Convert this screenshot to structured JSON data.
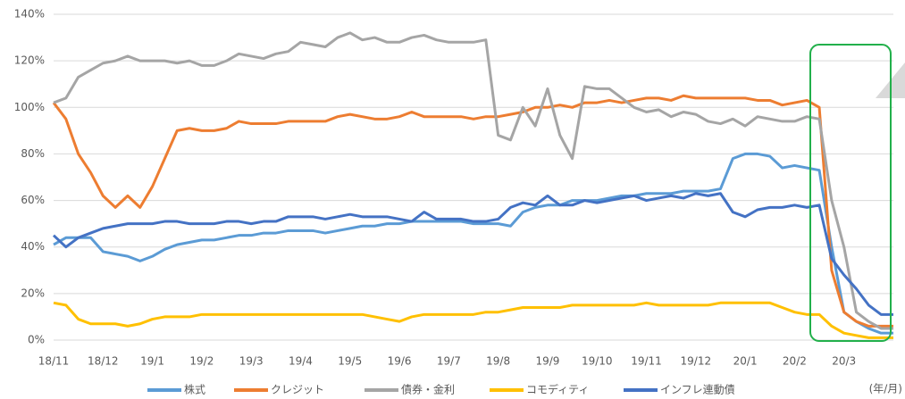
{
  "chart_data": {
    "type": "line",
    "categories": [
      "18/11",
      null,
      null,
      null,
      "18/12",
      null,
      null,
      null,
      "19/1",
      null,
      null,
      null,
      "19/2",
      null,
      null,
      null,
      "19/3",
      null,
      null,
      null,
      "19/4",
      null,
      null,
      null,
      "19/5",
      null,
      null,
      null,
      "19/6",
      null,
      null,
      null,
      "19/7",
      null,
      null,
      null,
      "19/8",
      null,
      null,
      null,
      "19/9",
      null,
      null,
      null,
      "19/10",
      null,
      null,
      null,
      "19/11",
      null,
      null,
      null,
      "19/12",
      null,
      null,
      null,
      "20/1",
      null,
      null,
      null,
      "20/2",
      null,
      null,
      null,
      "20/3",
      null,
      null,
      null,
      null
    ],
    "x_label": "(年/月)",
    "ylim": [
      0,
      140
    ],
    "yticks": [
      {
        "value": 0,
        "label": "0%"
      },
      {
        "value": 20,
        "label": "20%"
      },
      {
        "value": 40,
        "label": "40%"
      },
      {
        "value": 60,
        "label": "60%"
      },
      {
        "value": 80,
        "label": "80%"
      },
      {
        "value": 100,
        "label": "100%"
      },
      {
        "value": 120,
        "label": "120%"
      },
      {
        "value": 140,
        "label": "140%"
      }
    ],
    "grid": true,
    "legend": "bottom",
    "series": [
      {
        "name": "株式",
        "color": "#5b9bd5",
        "values": [
          41,
          44,
          44,
          44,
          38,
          37,
          36,
          34,
          36,
          39,
          41,
          42,
          43,
          43,
          44,
          45,
          45,
          46,
          46,
          47,
          47,
          47,
          46,
          47,
          48,
          49,
          49,
          50,
          50,
          51,
          51,
          51,
          51,
          51,
          50,
          50,
          50,
          49,
          55,
          57,
          58,
          58,
          60,
          60,
          60,
          61,
          62,
          62,
          63,
          63,
          63,
          64,
          64,
          64,
          65,
          78,
          80,
          80,
          79,
          74,
          75,
          74,
          73,
          40,
          12,
          8,
          5,
          3,
          3
        ]
      },
      {
        "name": "クレジット",
        "color": "#ed7d31",
        "values": [
          102,
          95,
          80,
          72,
          62,
          57,
          62,
          57,
          66,
          78,
          90,
          91,
          90,
          90,
          91,
          94,
          93,
          93,
          93,
          94,
          94,
          94,
          94,
          96,
          97,
          96,
          95,
          95,
          96,
          98,
          96,
          96,
          96,
          96,
          95,
          96,
          96,
          97,
          98,
          100,
          100,
          101,
          100,
          102,
          102,
          103,
          102,
          103,
          104,
          104,
          103,
          105,
          104,
          104,
          104,
          104,
          104,
          103,
          103,
          101,
          102,
          103,
          100,
          30,
          12,
          8,
          6,
          6,
          6
        ]
      },
      {
        "name": "債券・金利",
        "color": "#a5a5a5",
        "values": [
          102,
          104,
          113,
          116,
          119,
          120,
          122,
          120,
          120,
          120,
          119,
          120,
          118,
          118,
          120,
          123,
          122,
          121,
          123,
          124,
          128,
          127,
          126,
          130,
          132,
          129,
          130,
          128,
          128,
          130,
          131,
          129,
          128,
          128,
          128,
          129,
          88,
          86,
          100,
          92,
          108,
          88,
          78,
          109,
          108,
          108,
          104,
          100,
          98,
          99,
          96,
          98,
          97,
          94,
          93,
          95,
          92,
          96,
          95,
          94,
          94,
          96,
          95,
          60,
          40,
          12,
          8,
          5,
          5
        ]
      },
      {
        "name": "コモディティ",
        "color": "#ffc000",
        "values": [
          16,
          15,
          9,
          7,
          7,
          7,
          6,
          7,
          9,
          10,
          10,
          10,
          11,
          11,
          11,
          11,
          11,
          11,
          11,
          11,
          11,
          11,
          11,
          11,
          11,
          11,
          10,
          9,
          8,
          10,
          11,
          11,
          11,
          11,
          11,
          12,
          12,
          13,
          14,
          14,
          14,
          14,
          15,
          15,
          15,
          15,
          15,
          15,
          16,
          15,
          15,
          15,
          15,
          15,
          16,
          16,
          16,
          16,
          16,
          14,
          12,
          11,
          11,
          6,
          3,
          2,
          1,
          1,
          1
        ]
      },
      {
        "name": "インフレ連動債",
        "color": "#4472c4",
        "values": [
          45,
          40,
          44,
          46,
          48,
          49,
          50,
          50,
          50,
          51,
          51,
          50,
          50,
          50,
          51,
          51,
          50,
          51,
          51,
          53,
          53,
          53,
          52,
          53,
          54,
          53,
          53,
          53,
          52,
          51,
          55,
          52,
          52,
          52,
          51,
          51,
          52,
          57,
          59,
          58,
          62,
          58,
          58,
          60,
          59,
          60,
          61,
          62,
          60,
          61,
          62,
          61,
          63,
          62,
          63,
          55,
          53,
          56,
          57,
          57,
          58,
          57,
          58,
          35,
          28,
          22,
          15,
          11,
          11
        ]
      }
    ]
  }
}
